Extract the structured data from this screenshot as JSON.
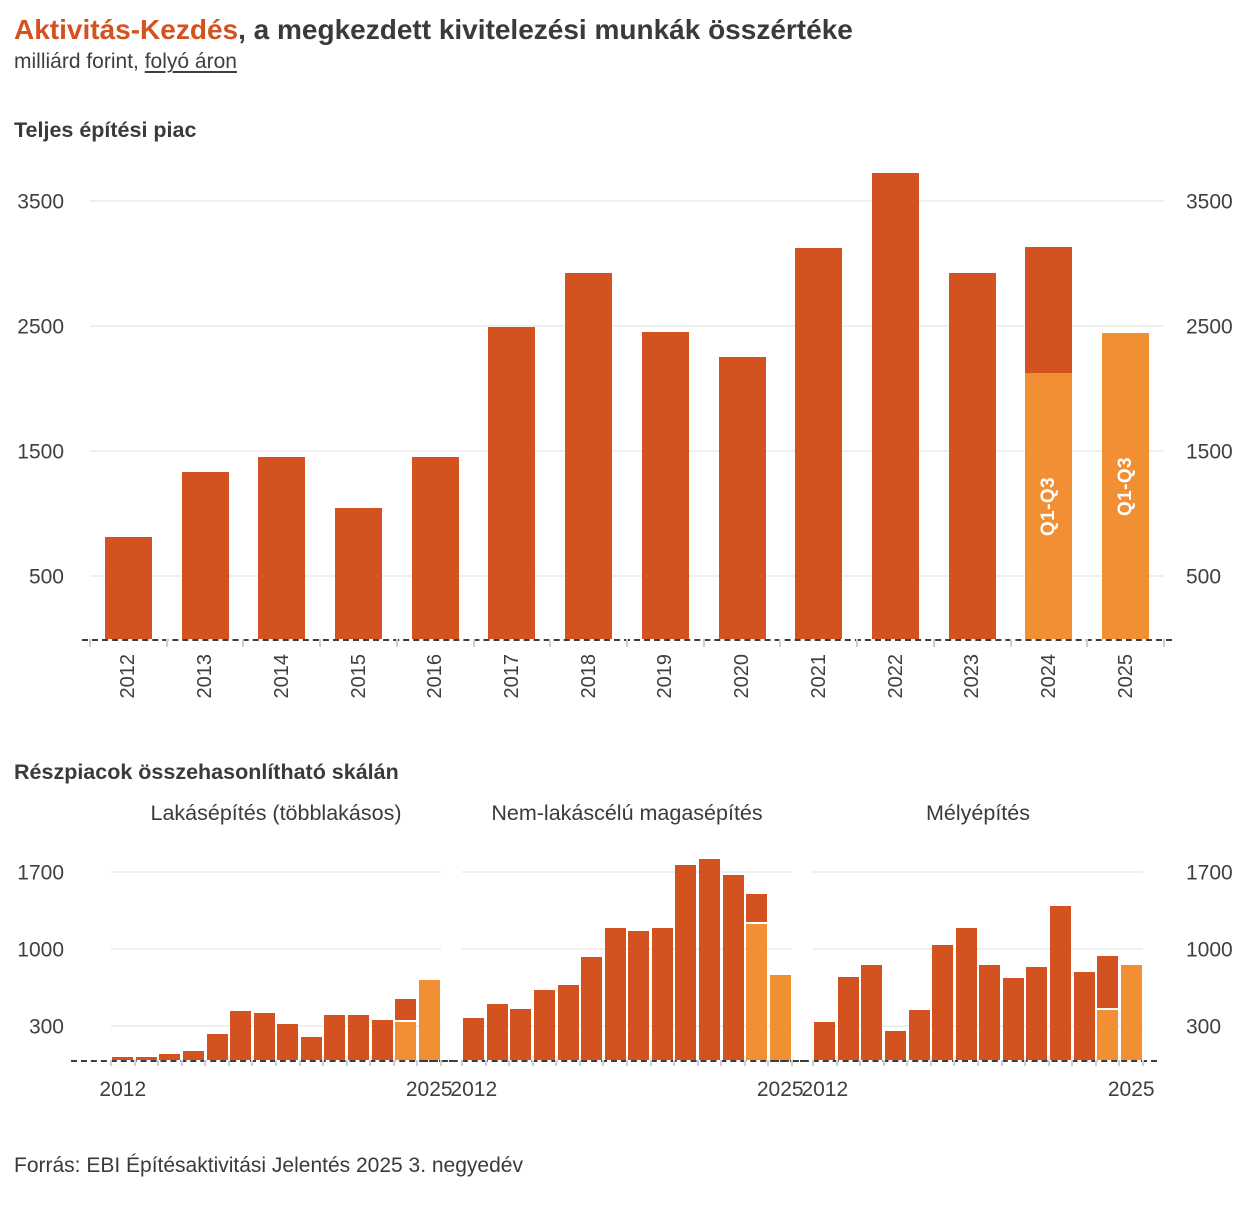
{
  "header": {
    "title_highlight": "Aktivitás-Kezdés",
    "title_rest": ", a megkezdett kivitelezési munkák összértéke",
    "subtitle_prefix": "milliárd forint, ",
    "subtitle_link": "folyó áron"
  },
  "section_headings": {
    "subcharts": "Részpiacok összehasonlítható skálán"
  },
  "footer": {
    "source": "Forrás: EBI Építésaktivitási Jelentés 2025 3. negyedév"
  },
  "colors": {
    "bar_dark": "#D4521F",
    "bar_light": "#F28E33",
    "text": "#3A3A3A",
    "axis_text": "#404040",
    "gridline": "#EFEFEF",
    "baseline": "#3D3D3D",
    "bar_label_text": "#FFFFFF"
  },
  "chart_data": [
    {
      "id": "teljes-epitesi-piac",
      "type": "bar",
      "title": "Teljes építési piac",
      "yticks": [
        500,
        1500,
        2500,
        3500
      ],
      "ylim": [
        0,
        3740
      ],
      "axis_sides": [
        "left",
        "right"
      ],
      "x_labels_visible": "all",
      "segment_separator": false,
      "categories": [
        "2012",
        "2013",
        "2014",
        "2015",
        "2016",
        "2017",
        "2018",
        "2019",
        "2020",
        "2021",
        "2022",
        "2023",
        "2024",
        "2025"
      ],
      "bars": [
        {
          "year": "2012",
          "total": 820
        },
        {
          "year": "2013",
          "total": 1340
        },
        {
          "year": "2014",
          "total": 1460
        },
        {
          "year": "2015",
          "total": 1050
        },
        {
          "year": "2016",
          "total": 1460
        },
        {
          "year": "2017",
          "total": 2500
        },
        {
          "year": "2018",
          "total": 2930
        },
        {
          "year": "2019",
          "total": 2460
        },
        {
          "year": "2020",
          "total": 2260
        },
        {
          "year": "2021",
          "total": 3130
        },
        {
          "year": "2022",
          "total": 3730
        },
        {
          "year": "2023",
          "total": 2930
        },
        {
          "year": "2024",
          "total": 3140,
          "q1_q3": 2130,
          "segment_label": "Q1-Q3"
        },
        {
          "year": "2025",
          "total": 2450,
          "q1_q3": 2450,
          "segment_label": "Q1-Q3"
        }
      ]
    },
    {
      "id": "lakasepites-tobblakasos",
      "type": "bar",
      "title": "Lakásépítés (többlakásos)",
      "yticks": [
        300,
        1000,
        1700
      ],
      "ylim": [
        0,
        1870
      ],
      "axis_sides": [
        "left"
      ],
      "x_labels_visible": [
        "2012",
        "2025"
      ],
      "segment_separator": true,
      "categories": [
        "2012",
        "2013",
        "2014",
        "2015",
        "2016",
        "2017",
        "2018",
        "2019",
        "2020",
        "2021",
        "2022",
        "2023",
        "2024",
        "2025"
      ],
      "bars": [
        {
          "year": "2012",
          "total": 30
        },
        {
          "year": "2013",
          "total": 30
        },
        {
          "year": "2014",
          "total": 60
        },
        {
          "year": "2015",
          "total": 90
        },
        {
          "year": "2016",
          "total": 240
        },
        {
          "year": "2017",
          "total": 450
        },
        {
          "year": "2018",
          "total": 430
        },
        {
          "year": "2019",
          "total": 330
        },
        {
          "year": "2020",
          "total": 210
        },
        {
          "year": "2021",
          "total": 410
        },
        {
          "year": "2022",
          "total": 410
        },
        {
          "year": "2023",
          "total": 370
        },
        {
          "year": "2024",
          "total": 560,
          "q1_q3": 350
        },
        {
          "year": "2025",
          "total": 730,
          "q1_q3": 730
        }
      ]
    },
    {
      "id": "nem-lakascelu-magasepites",
      "type": "bar",
      "title": "Nem-lakáscélú magasépítés",
      "yticks": [
        300,
        1000,
        1700
      ],
      "ylim": [
        0,
        1870
      ],
      "axis_sides": [],
      "x_labels_visible": [
        "2012",
        "2025"
      ],
      "segment_separator": true,
      "categories": [
        "2012",
        "2013",
        "2014",
        "2015",
        "2016",
        "2017",
        "2018",
        "2019",
        "2020",
        "2021",
        "2022",
        "2023",
        "2024",
        "2025"
      ],
      "bars": [
        {
          "year": "2012",
          "total": 390
        },
        {
          "year": "2013",
          "total": 510
        },
        {
          "year": "2014",
          "total": 470
        },
        {
          "year": "2015",
          "total": 640
        },
        {
          "year": "2016",
          "total": 690
        },
        {
          "year": "2017",
          "total": 940
        },
        {
          "year": "2018",
          "total": 1200
        },
        {
          "year": "2019",
          "total": 1180
        },
        {
          "year": "2020",
          "total": 1200
        },
        {
          "year": "2021",
          "total": 1780
        },
        {
          "year": "2022",
          "total": 1830
        },
        {
          "year": "2023",
          "total": 1690
        },
        {
          "year": "2024",
          "total": 1510,
          "q1_q3": 1240
        },
        {
          "year": "2025",
          "total": 780,
          "q1_q3": 780
        }
      ]
    },
    {
      "id": "melyepites",
      "type": "bar",
      "title": "Mélyépítés",
      "yticks": [
        300,
        1000,
        1700
      ],
      "ylim": [
        0,
        1870
      ],
      "axis_sides": [
        "right"
      ],
      "x_labels_visible": [
        "2012",
        "2025"
      ],
      "segment_separator": true,
      "categories": [
        "2012",
        "2013",
        "2014",
        "2015",
        "2016",
        "2017",
        "2018",
        "2019",
        "2020",
        "2021",
        "2022",
        "2023",
        "2024",
        "2025"
      ],
      "bars": [
        {
          "year": "2012",
          "total": 350
        },
        {
          "year": "2013",
          "total": 760
        },
        {
          "year": "2014",
          "total": 870
        },
        {
          "year": "2015",
          "total": 270
        },
        {
          "year": "2016",
          "total": 460
        },
        {
          "year": "2017",
          "total": 1050
        },
        {
          "year": "2018",
          "total": 1200
        },
        {
          "year": "2019",
          "total": 870
        },
        {
          "year": "2020",
          "total": 750
        },
        {
          "year": "2021",
          "total": 850
        },
        {
          "year": "2022",
          "total": 1400
        },
        {
          "year": "2023",
          "total": 800
        },
        {
          "year": "2024",
          "total": 950,
          "q1_q3": 460
        },
        {
          "year": "2025",
          "total": 870,
          "q1_q3": 870
        }
      ]
    }
  ]
}
